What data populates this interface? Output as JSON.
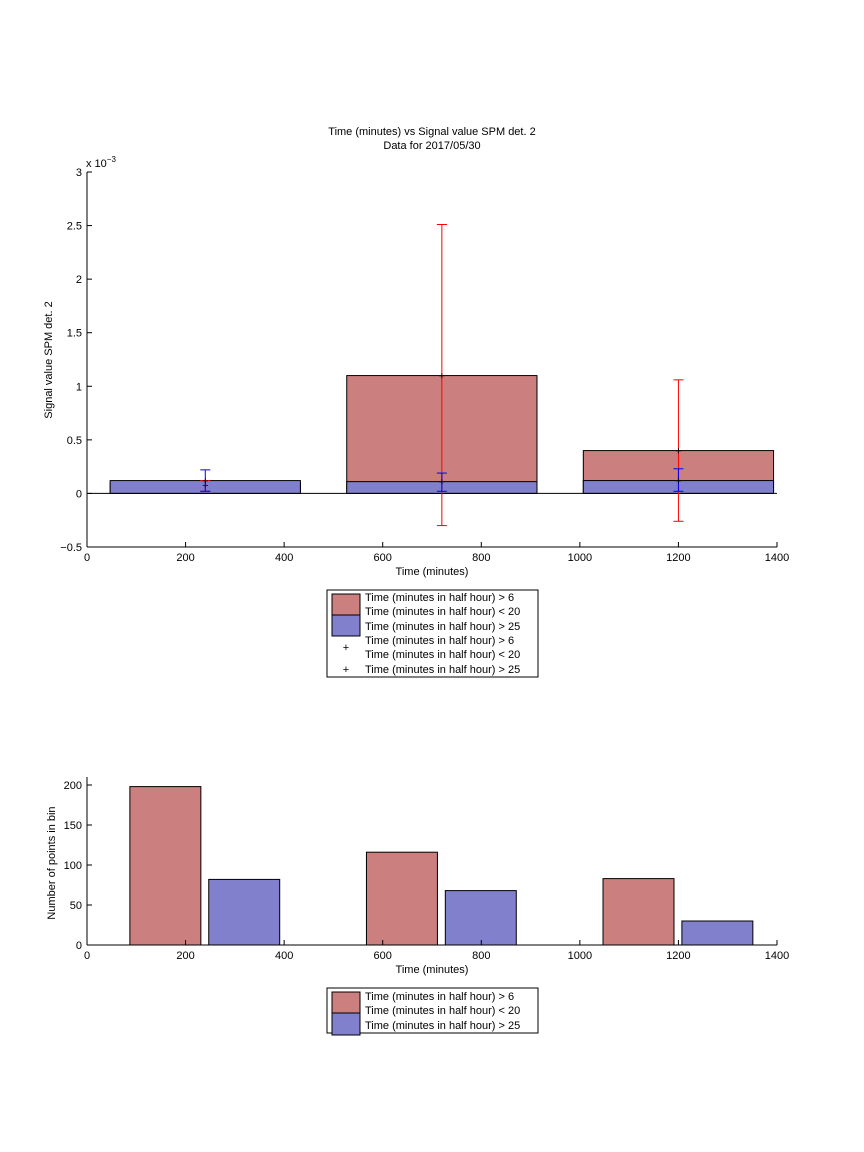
{
  "colors": {
    "red_bar": "#cc7f7f",
    "blue_bar": "#8080cc",
    "red_err": "#ff0000",
    "blue_err": "#0000ff"
  },
  "chart_data": [
    {
      "type": "bar",
      "title": "Time (minutes) vs Signal value SPM det. 2",
      "subtitle": "Data for 2017/05/30",
      "xlabel": "Time (minutes)",
      "ylabel": "Signal value SPM det. 2",
      "exponent_label": "x 10",
      "exponent_power": "−3",
      "xlim": [
        0,
        1400
      ],
      "ylim": [
        -0.5,
        3
      ],
      "y_scale_factor": 0.001,
      "xticks": [
        "0",
        "200",
        "400",
        "600",
        "800",
        "1000",
        "1200",
        "1400"
      ],
      "yticks": [
        "−0.5",
        "0",
        "0.5",
        "1",
        "1.5",
        "2",
        "2.5",
        "3"
      ],
      "bins": [
        {
          "x0": 47,
          "x1": 433,
          "center": 240
        },
        {
          "x0": 527,
          "x1": 913,
          "center": 720
        },
        {
          "x0": 1007,
          "x1": 1393,
          "center": 1200
        }
      ],
      "series": [
        {
          "name": "Time (minutes in half hour) > 6 Time (minutes in half hour) < 20",
          "values": [
            0.1,
            1.1,
            0.4
          ],
          "err_center": [
            0.08,
            1.1,
            0.4
          ],
          "err_low": [
            0.02,
            -0.3,
            -0.26
          ],
          "err_high": [
            0.12,
            2.51,
            1.06
          ]
        },
        {
          "name": "Time (minutes in half hour) > 25",
          "values": [
            0.12,
            0.11,
            0.12
          ],
          "err_center": [
            0.12,
            0.11,
            0.12
          ],
          "err_low": [
            0.02,
            0.02,
            0.02
          ],
          "err_high": [
            0.22,
            0.19,
            0.23
          ]
        }
      ],
      "legend": {
        "placement": "below",
        "entries": [
          "Time (minutes in half hour) > 6",
          "Time (minutes in half hour) < 20",
          "Time (minutes in half hour) > 25",
          "Time (minutes in half hour) > 6",
          "Time (minutes in half hour) < 20",
          "Time (minutes in half hour) > 25"
        ]
      }
    },
    {
      "type": "bar",
      "xlabel": "Time (minutes)",
      "ylabel": "Number of points in bin",
      "xlim": [
        0,
        1400
      ],
      "ylim": [
        0,
        210
      ],
      "xticks": [
        "0",
        "200",
        "400",
        "600",
        "800",
        "1000",
        "1200",
        "1400"
      ],
      "yticks": [
        "0",
        "50",
        "100",
        "150",
        "200"
      ],
      "series": [
        {
          "name": "Time (minutes in half hour) > 6 Time (minutes in half hour) < 20",
          "x0": [
            87,
            567,
            1047
          ],
          "x1": [
            231,
            711,
            1191
          ],
          "values": [
            198,
            116,
            83
          ]
        },
        {
          "name": "Time (minutes in half hour) > 25",
          "x0": [
            247,
            727,
            1207
          ],
          "x1": [
            391,
            871,
            1351
          ],
          "values": [
            82,
            68,
            30
          ]
        }
      ],
      "legend": {
        "placement": "below",
        "entries": [
          "Time (minutes in half hour) > 6",
          "Time (minutes in half hour) < 20",
          "Time (minutes in half hour) > 25"
        ]
      }
    }
  ]
}
